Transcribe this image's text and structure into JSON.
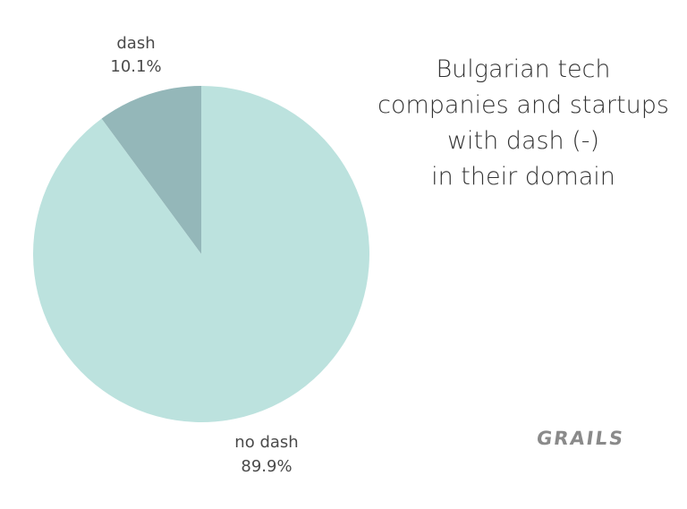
{
  "chart_data": {
    "type": "pie",
    "title_lines": [
      "Bulgarian tech",
      "companies and startups",
      "with dash (-)",
      "in their domain"
    ],
    "slices": [
      {
        "label": "dash",
        "value": 10.1,
        "value_label": "10.1%",
        "color": "#94b7b9"
      },
      {
        "label": "no dash",
        "value": 89.9,
        "value_label": "89.9%",
        "color": "#bce2de"
      }
    ]
  },
  "brand": {
    "name": "GRAILS"
  }
}
